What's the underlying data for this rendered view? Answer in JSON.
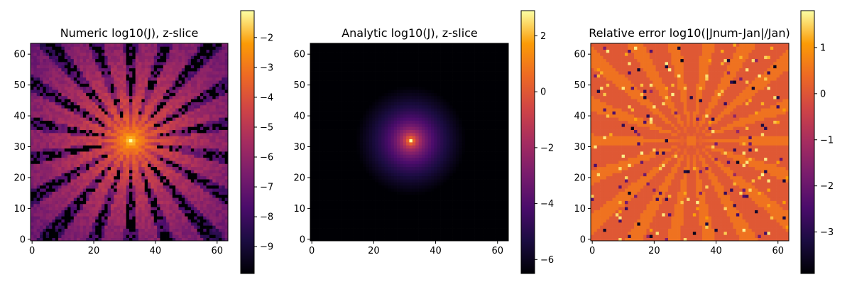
{
  "chart_data": [
    {
      "type": "heatmap",
      "title": "Numeric log10(J), z-slice",
      "xlabel": "",
      "ylabel": "",
      "grid": false,
      "colormap": "inferno",
      "xlim": [
        -0.5,
        63.5
      ],
      "ylim": [
        -0.5,
        63.5
      ],
      "xticks": [
        "0",
        "20",
        "40",
        "60"
      ],
      "yticks": [
        "0",
        "10",
        "20",
        "30",
        "40",
        "50",
        "60"
      ],
      "color_range": [
        -9.9,
        -1.1
      ],
      "colorbar_ticks": [
        "−2",
        "−3",
        "−4",
        "−5",
        "−6",
        "−7",
        "−8",
        "−9"
      ],
      "colorbar_values": [
        -2,
        -3,
        -4,
        -5,
        -6,
        -7,
        -8,
        -9
      ],
      "center": [
        32,
        32
      ],
      "peak_value": -1.2
    },
    {
      "type": "heatmap",
      "title": "Analytic log10(J), z-slice",
      "xlabel": "",
      "ylabel": "",
      "grid": false,
      "colormap": "inferno",
      "xlim": [
        -0.5,
        63.5
      ],
      "ylim": [
        -0.5,
        63.5
      ],
      "xticks": [
        "0",
        "20",
        "40",
        "60"
      ],
      "yticks": [
        "0",
        "10",
        "20",
        "30",
        "40",
        "50",
        "60"
      ],
      "color_range": [
        -6.5,
        2.9
      ],
      "colorbar_ticks": [
        "2",
        "0",
        "−2",
        "−4",
        "−6"
      ],
      "colorbar_values": [
        2,
        0,
        -2,
        -4,
        -6
      ],
      "center": [
        32,
        32
      ],
      "peak_value": 2.9
    },
    {
      "type": "heatmap",
      "title": "Relative error log10(|Jnum-Jan|/Jan)",
      "xlabel": "",
      "ylabel": "",
      "grid": false,
      "colormap": "inferno",
      "xlim": [
        -0.5,
        63.5
      ],
      "ylim": [
        -0.5,
        63.5
      ],
      "xticks": [
        "0",
        "20",
        "40",
        "60"
      ],
      "yticks": [
        "0",
        "10",
        "20",
        "30",
        "40",
        "50",
        "60"
      ],
      "color_range": [
        -3.9,
        1.8
      ],
      "colorbar_ticks": [
        "1",
        "0",
        "−1",
        "−2",
        "−3"
      ],
      "colorbar_values": [
        1,
        0,
        -1,
        -2,
        -3
      ],
      "center": [
        32,
        32
      ],
      "typical_value": 0.0
    }
  ]
}
